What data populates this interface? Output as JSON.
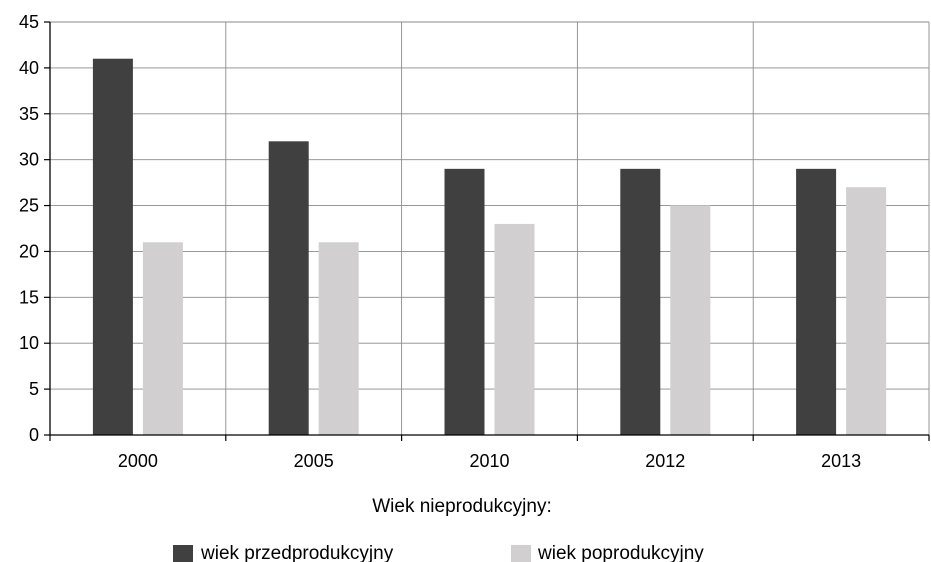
{
  "chart_data": {
    "type": "bar",
    "categories": [
      "2000",
      "2005",
      "2010",
      "2012",
      "2013"
    ],
    "series": [
      {
        "name": "wiek przedprodukcyjny",
        "values": [
          41,
          32,
          29,
          29,
          29
        ],
        "color": "#404040"
      },
      {
        "name": "wiek poprodukcyjny",
        "values": [
          21,
          21,
          23,
          25,
          27
        ],
        "color": "#d1cfd0"
      }
    ],
    "ylim": [
      0,
      45
    ],
    "yticks": [
      "0",
      "5",
      "10",
      "15",
      "20",
      "25",
      "30",
      "35",
      "40",
      "45"
    ],
    "grid": true,
    "legend": {
      "title": "Wiek nieprodukcyjny:",
      "placement": "bottom"
    }
  }
}
